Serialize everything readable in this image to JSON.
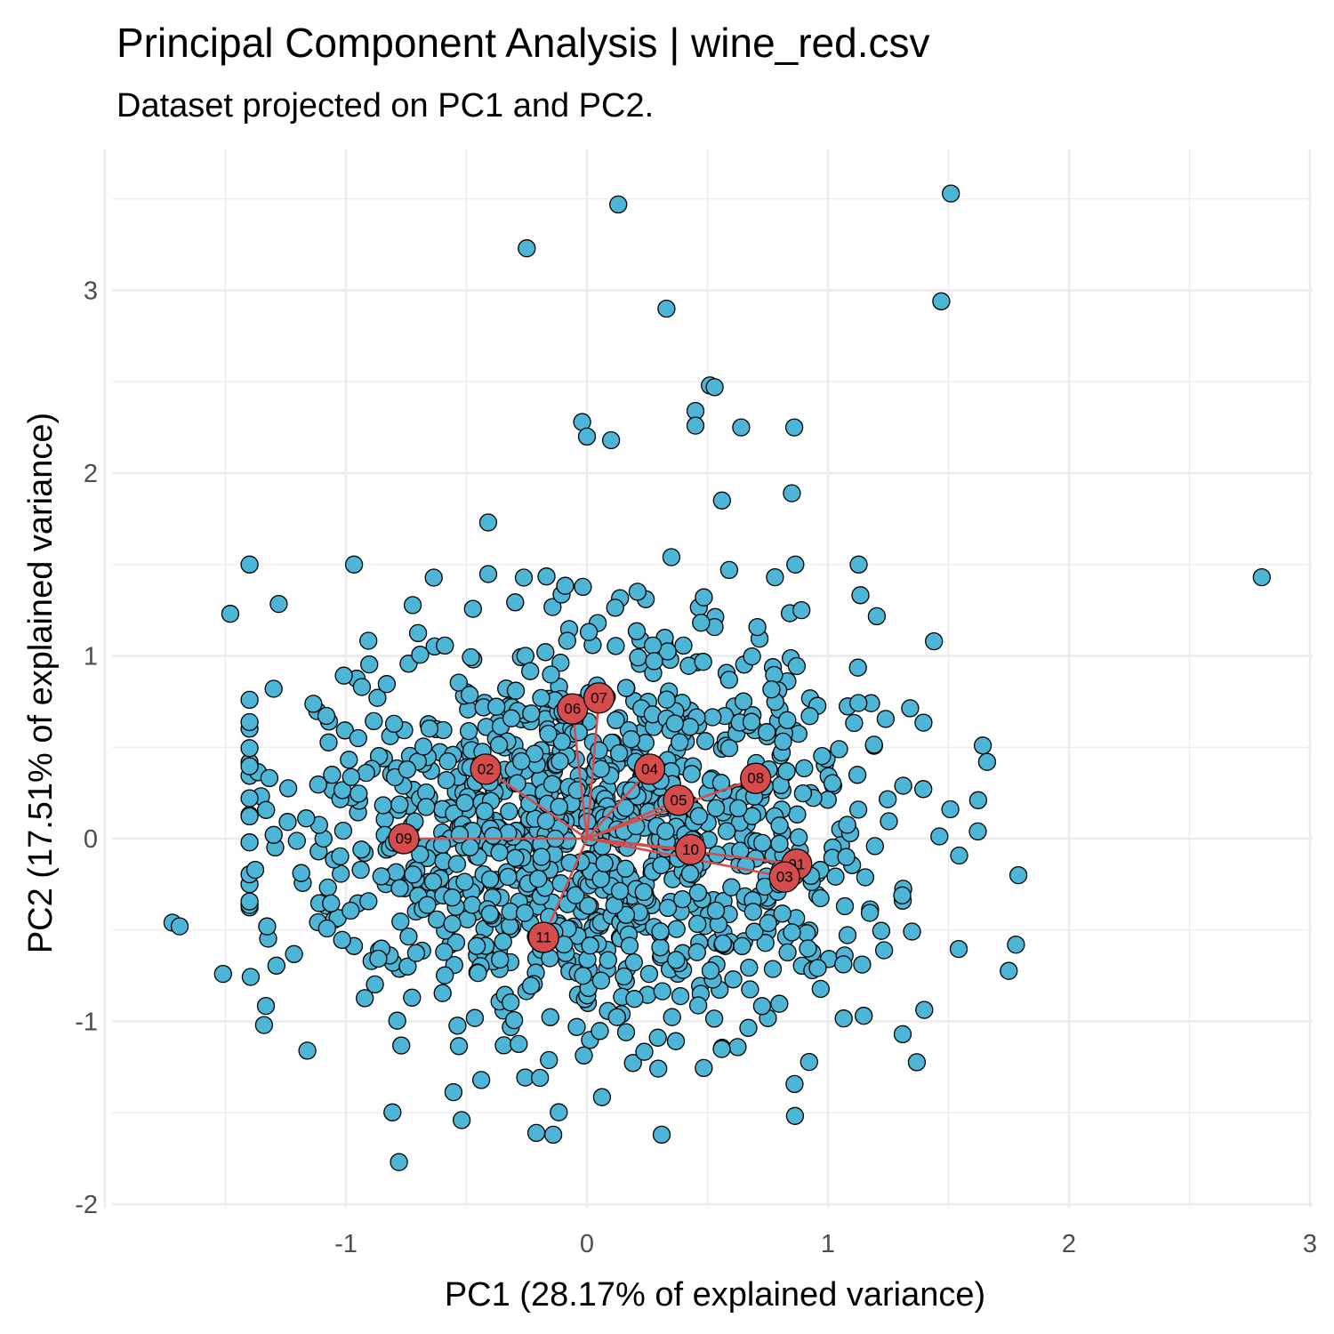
{
  "chart_data": {
    "type": "scatter",
    "title": "Principal Component Analysis | wine_red.csv",
    "subtitle": "Dataset projected on PC1 and PC2.",
    "xlabel": "PC1 (28.17% of explained variance)",
    "ylabel": "PC2 (17.51% of explained variance)",
    "xlim": [
      -2.0,
      3.0
    ],
    "ylim": [
      -2.0,
      3.8
    ],
    "x_ticks": [
      -1,
      0,
      1,
      2,
      3
    ],
    "y_ticks": [
      -2,
      -1,
      0,
      1,
      2,
      3
    ],
    "grid": true,
    "legend": "none",
    "colors": {
      "points": "#4db6d6",
      "vectors": "#d64b4b",
      "grid": "#ebebeb"
    },
    "outliers": [
      {
        "x": 1.51,
        "y": 3.53
      },
      {
        "x": 0.13,
        "y": 3.47
      },
      {
        "x": -0.25,
        "y": 3.23
      },
      {
        "x": 1.47,
        "y": 2.94
      },
      {
        "x": 0.33,
        "y": 2.9
      },
      {
        "x": 0.51,
        "y": 2.48
      },
      {
        "x": 0.53,
        "y": 2.47
      },
      {
        "x": 0.45,
        "y": 2.34
      },
      {
        "x": 0.45,
        "y": 2.26
      },
      {
        "x": 0.64,
        "y": 2.25
      },
      {
        "x": 0.86,
        "y": 2.25
      },
      {
        "x": -0.02,
        "y": 2.28
      },
      {
        "x": 0.1,
        "y": 2.18
      },
      {
        "x": 0.0,
        "y": 2.2
      },
      {
        "x": 0.85,
        "y": 1.89
      },
      {
        "x": 0.56,
        "y": 1.85
      },
      {
        "x": 2.8,
        "y": 1.43
      },
      {
        "x": -1.48,
        "y": 1.23
      },
      {
        "x": -0.41,
        "y": 1.73
      },
      {
        "x": -1.3,
        "y": 0.82
      },
      {
        "x": -1.72,
        "y": -0.46
      },
      {
        "x": -1.69,
        "y": -0.48
      },
      {
        "x": -1.51,
        "y": -0.74
      },
      {
        "x": -0.78,
        "y": -1.77
      },
      {
        "x": -0.52,
        "y": -1.54
      },
      {
        "x": 0.31,
        "y": -1.62
      },
      {
        "x": -0.14,
        "y": -1.62
      },
      {
        "x": -0.21,
        "y": -1.61
      },
      {
        "x": 1.31,
        "y": -1.07
      },
      {
        "x": 1.78,
        "y": -0.58
      },
      {
        "x": 1.79,
        "y": -0.2
      },
      {
        "x": 1.66,
        "y": 0.42
      },
      {
        "x": 1.44,
        "y": 1.08
      },
      {
        "x": -1.34,
        "y": -1.02
      },
      {
        "x": -1.16,
        "y": -1.16
      },
      {
        "x": 0.35,
        "y": 1.54
      },
      {
        "x": 0.59,
        "y": 1.47
      },
      {
        "x": 0.78,
        "y": 1.43
      },
      {
        "x": 0.89,
        "y": 1.25
      }
    ],
    "cluster": {
      "count": 1150,
      "center": {
        "x": -0.02,
        "y": 0.02
      },
      "spread": {
        "x": 0.6,
        "y": 0.55
      },
      "seed": 1599
    },
    "vectors": [
      {
        "label": "01",
        "x": 0.87,
        "y": -0.14
      },
      {
        "label": "02",
        "x": -0.42,
        "y": 0.38
      },
      {
        "label": "03",
        "x": 0.82,
        "y": -0.21
      },
      {
        "label": "04",
        "x": 0.26,
        "y": 0.38
      },
      {
        "label": "05",
        "x": 0.38,
        "y": 0.21
      },
      {
        "label": "06",
        "x": -0.06,
        "y": 0.71
      },
      {
        "label": "07",
        "x": 0.05,
        "y": 0.77
      },
      {
        "label": "08",
        "x": 0.7,
        "y": 0.33
      },
      {
        "label": "09",
        "x": -0.76,
        "y": 0.0
      },
      {
        "label": "10",
        "x": 0.43,
        "y": -0.06
      },
      {
        "label": "11",
        "x": -0.18,
        "y": -0.54
      }
    ]
  }
}
